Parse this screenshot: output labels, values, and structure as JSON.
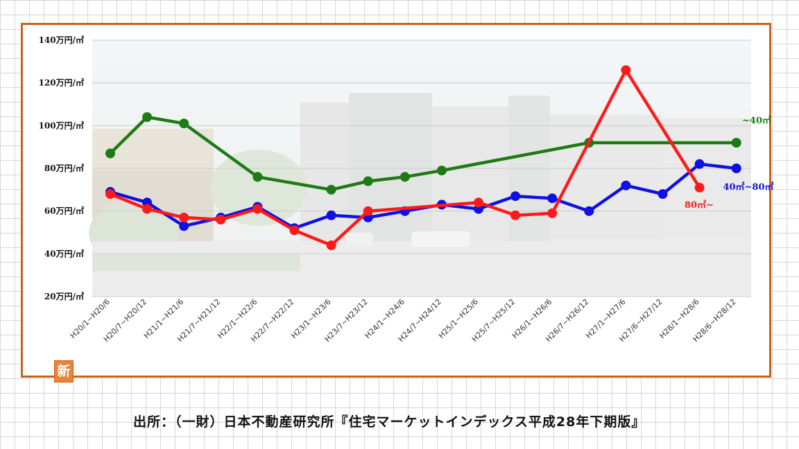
{
  "chart_data": {
    "type": "line",
    "y_ticks": [
      "140万円/㎡",
      "120万円/㎡",
      "100万円/㎡",
      "80万円/㎡",
      "60万円/㎡",
      "40万円/㎡",
      "20万円/㎡"
    ],
    "ylim": [
      20,
      140
    ],
    "grid": "horizontal",
    "categories": [
      "H20/1~H20/6",
      "H20/7~H20/12",
      "H21/1~H21/6",
      "H21/7~H21/12",
      "H22/1~H22/6",
      "H22/7~H22/12",
      "H23/1~H23/6",
      "H23/7~H23/12",
      "H24/1~H24/6",
      "H24/7~H24/12",
      "H25/1~H25/6",
      "H25/7~H25/12",
      "H26/1~H26/6",
      "H26/7~H26/12",
      "H27/1~H27/6",
      "H27/6~H27/12",
      "H28/1~H28/6",
      "H28/6~H28/12"
    ],
    "series": [
      {
        "name": "~40㎡",
        "color": "#1e7a14",
        "values": [
          87,
          104,
          101,
          null,
          76,
          null,
          70,
          74,
          76,
          79,
          null,
          null,
          null,
          92,
          null,
          null,
          null,
          92
        ]
      },
      {
        "name": "40㎡~80㎡",
        "color": "#1010e0",
        "values": [
          69,
          64,
          53,
          57,
          62,
          52,
          58,
          57,
          60,
          63,
          61,
          67,
          66,
          60,
          72,
          68,
          82,
          80
        ]
      },
      {
        "name": "80㎡~",
        "color": "#ff1a1a",
        "values": [
          68,
          61,
          57,
          56,
          61,
          51,
          44,
          60,
          null,
          null,
          64,
          58,
          59,
          null,
          126,
          null,
          71,
          null
        ]
      }
    ]
  },
  "badge": "新",
  "source": "出所：（一財）日本不動産研究所『住宅マーケットインデックス平成28年下期版』"
}
